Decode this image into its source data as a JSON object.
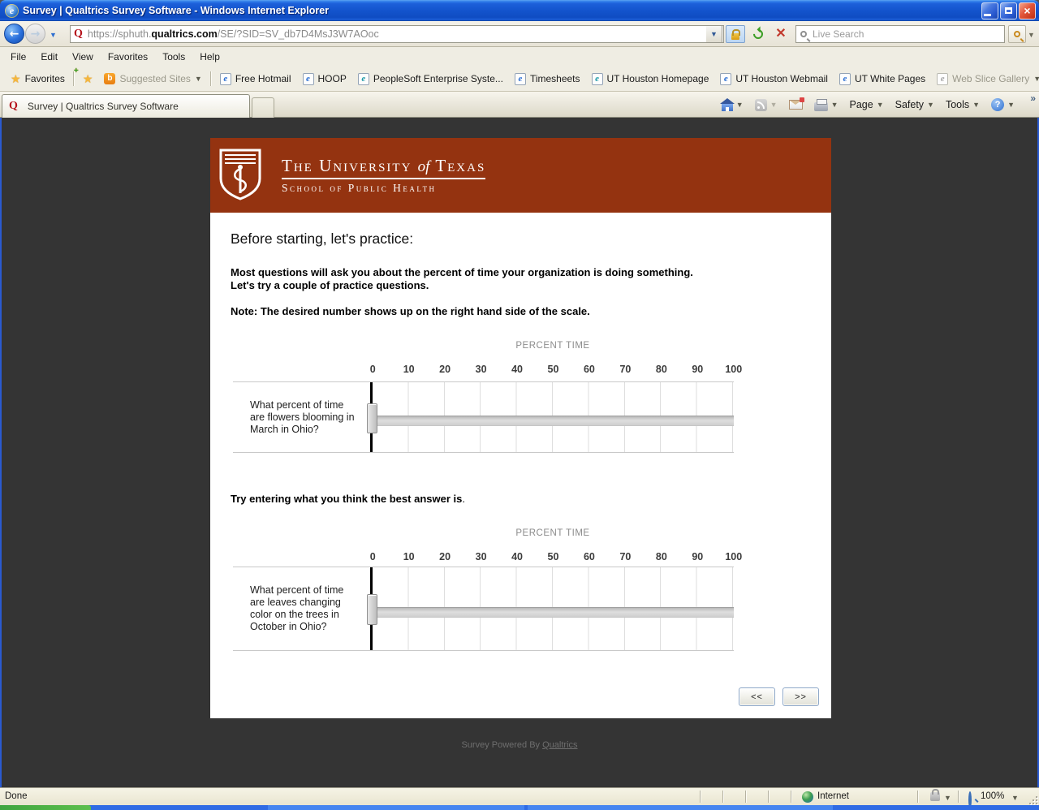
{
  "window": {
    "title": "Survey | Qualtrics Survey Software - Windows Internet Explorer"
  },
  "address_bar": {
    "url_prefix": "https://sphuth.",
    "url_domain": "qualtrics.com",
    "url_path": "/SE/?SID=SV_db7D4MsJ3W7AOoc",
    "search_placeholder": "Live Search"
  },
  "menu_bar": {
    "items": [
      "File",
      "Edit",
      "View",
      "Favorites",
      "Tools",
      "Help"
    ]
  },
  "favorites_bar": {
    "favorites_label": "Favorites",
    "suggested_sites_label": "Suggested Sites",
    "links": [
      "Free Hotmail",
      "HOOP",
      "PeopleSoft Enterprise Syste...",
      "Timesheets",
      "UT Houston Homepage",
      "UT Houston Webmail",
      "UT White Pages"
    ],
    "web_slice_label": "Web Slice Gallery"
  },
  "tab_bar": {
    "active_tab": "Survey | Qualtrics Survey Software"
  },
  "command_bar": {
    "page_label": "Page",
    "safety_label": "Safety",
    "tools_label": "Tools",
    "overflow": "»"
  },
  "survey": {
    "university_part1": "The University",
    "university_of": "of",
    "university_part2": "Texas",
    "school_line": "School of Public Health",
    "heading": "Before starting, let's practice:",
    "intro_line1": "Most questions will ask you about the percent of time your organization is doing something.",
    "intro_line2": "Let's try a couple of practice questions.",
    "note": "Note: The desired number shows up on the right hand side of the scale.",
    "try_prompt": "Try entering what you think the best answer is",
    "try_prompt_period": ".",
    "scale_title": "PERCENT TIME",
    "ticks": [
      "0",
      "10",
      "20",
      "30",
      "40",
      "50",
      "60",
      "70",
      "80",
      "90",
      "100"
    ],
    "sliders": [
      {
        "question": "What percent of time are flowers blooming in March in Ohio?",
        "value": 0
      },
      {
        "question": "What percent of time are leaves changing color on the trees in October in Ohio?",
        "value": 0
      }
    ],
    "back_button": "<<",
    "next_button": ">>",
    "footer_text": "Survey Powered By",
    "footer_link": "Qualtrics"
  },
  "status_bar": {
    "status": "Done",
    "zone": "Internet",
    "zoom_level": "100%"
  },
  "colors": {
    "banner_orange": "#943310",
    "titlebar_blue": "#1453cc",
    "page_background": "#343434",
    "qualtrics_red": "#b5121b"
  }
}
